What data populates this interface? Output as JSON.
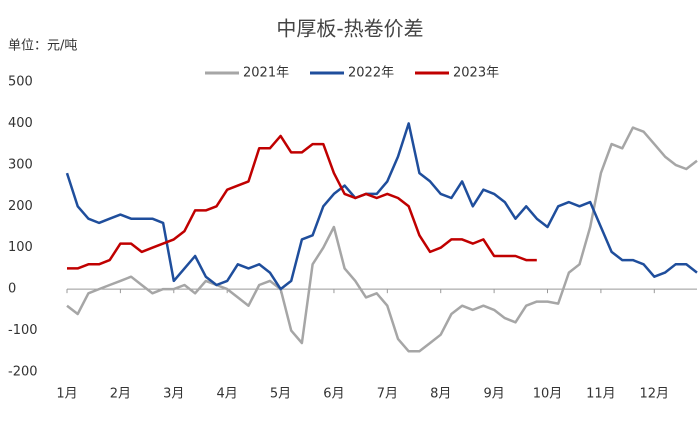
{
  "chart_data": {
    "type": "line",
    "title": "中厚板-热卷价差",
    "y_label": "单位：元/吨",
    "categories": [
      "1月",
      null,
      null,
      null,
      null,
      "2月",
      null,
      null,
      null,
      null,
      "3月",
      null,
      null,
      null,
      null,
      "4月",
      null,
      null,
      null,
      null,
      "5月",
      null,
      null,
      null,
      null,
      "6月",
      null,
      null,
      null,
      null,
      "7月",
      null,
      null,
      null,
      null,
      "8月",
      null,
      null,
      null,
      null,
      "9月",
      null,
      null,
      null,
      null,
      "10月",
      null,
      null,
      null,
      null,
      "11月",
      null,
      null,
      null,
      null,
      "12月",
      null,
      null,
      null,
      null
    ],
    "series": [
      {
        "name": "2021年",
        "color": "#a6a6a6",
        "values": [
          -40,
          -60,
          -10,
          0,
          10,
          20,
          30,
          10,
          -10,
          0,
          0,
          10,
          -10,
          20,
          10,
          0,
          -20,
          -40,
          10,
          20,
          0,
          -100,
          -130,
          60,
          100,
          150,
          50,
          20,
          -20,
          -10,
          -40,
          -120,
          -150,
          -150,
          -130,
          -110,
          -60,
          -40,
          -50,
          -40,
          -50,
          -70,
          -80,
          -40,
          -30,
          -30,
          -35,
          40,
          60,
          150,
          280,
          350,
          340,
          390,
          380,
          350,
          320,
          300,
          290,
          310
        ]
      },
      {
        "name": "2022年",
        "color": "#1f4e9c",
        "values": [
          280,
          200,
          170,
          160,
          170,
          180,
          170,
          170,
          170,
          160,
          20,
          50,
          80,
          30,
          10,
          20,
          60,
          50,
          60,
          40,
          0,
          20,
          120,
          130,
          200,
          230,
          250,
          220,
          230,
          230,
          260,
          320,
          400,
          280,
          260,
          230,
          220,
          260,
          200,
          240,
          230,
          210,
          170,
          200,
          170,
          150,
          200,
          210,
          200,
          210,
          150,
          90,
          70,
          70,
          60,
          30,
          40,
          60,
          60,
          40
        ]
      },
      {
        "name": "2023年",
        "color": "#c00000",
        "values": [
          50,
          50,
          60,
          60,
          70,
          110,
          110,
          90,
          100,
          110,
          120,
          140,
          190,
          190,
          200,
          240,
          250,
          260,
          340,
          340,
          370,
          330,
          330,
          350,
          350,
          280,
          230,
          220,
          230,
          220,
          230,
          220,
          200,
          130,
          90,
          100,
          120,
          120,
          110,
          120,
          80,
          80,
          80,
          70,
          70,
          null,
          null,
          null,
          null,
          null,
          null,
          null,
          null,
          null,
          null,
          null,
          null,
          null,
          null,
          null
        ]
      }
    ],
    "ylim": [
      -200,
      500
    ],
    "yticks": [
      -200,
      -100,
      0,
      100,
      200,
      300,
      400,
      500
    ],
    "grid": false
  }
}
